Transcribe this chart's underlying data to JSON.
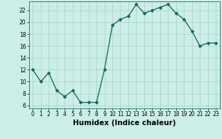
{
  "x": [
    0,
    1,
    2,
    3,
    4,
    5,
    6,
    7,
    8,
    9,
    10,
    11,
    12,
    13,
    14,
    15,
    16,
    17,
    18,
    19,
    20,
    21,
    22,
    23
  ],
  "y": [
    12,
    10,
    11.5,
    8.5,
    7.5,
    8.5,
    6.5,
    6.5,
    6.5,
    12,
    19.5,
    20.5,
    21,
    23,
    21.5,
    22,
    22.5,
    23,
    21.5,
    20.5,
    18.5,
    16,
    16.5,
    16.5
  ],
  "line_color": "#1a6b5a",
  "marker": "D",
  "marker_size": 2,
  "bg_color": "#cceee8",
  "grid_color": "#aad4cc",
  "xlabel": "Humidex (Indice chaleur)",
  "xlim": [
    -0.5,
    23.5
  ],
  "ylim": [
    5.5,
    23.5
  ],
  "yticks": [
    6,
    8,
    10,
    12,
    14,
    16,
    18,
    20,
    22
  ],
  "xticks": [
    0,
    1,
    2,
    3,
    4,
    5,
    6,
    7,
    8,
    9,
    10,
    11,
    12,
    13,
    14,
    15,
    16,
    17,
    18,
    19,
    20,
    21,
    22,
    23
  ],
  "tick_fontsize": 5.5,
  "label_fontsize": 7.5,
  "linewidth": 1.0
}
